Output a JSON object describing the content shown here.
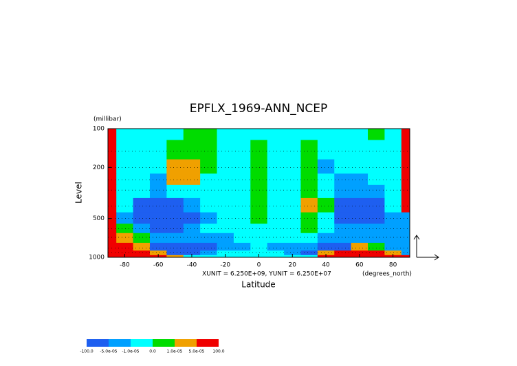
{
  "chart_data": {
    "type": "contour",
    "title": "EPFLX_1969-ANN_NCEP",
    "y_unit": "(millibar)",
    "y_label": "Level",
    "x_label": "Latitude",
    "x_unit": "(degrees_north)",
    "scale_note": "XUNIT = 6.250E+09, YUNIT = 6.250E+07",
    "x": [
      -90,
      -80,
      -70,
      -60,
      -50,
      -40,
      -30,
      -20,
      -10,
      0,
      10,
      20,
      30,
      40,
      50,
      60,
      70,
      80,
      90
    ],
    "y": [
      100,
      150,
      200,
      250,
      300,
      400,
      500,
      600,
      700,
      850,
      925,
      1000
    ],
    "xlim": [
      -90,
      90
    ],
    "xticks": [
      -80,
      -60,
      -40,
      -20,
      0,
      20,
      40,
      60,
      80
    ],
    "ylim": [
      1000,
      100
    ],
    "yticks": [
      100,
      200,
      500,
      1000
    ],
    "ylog": true,
    "levels": [
      {
        "value": -100,
        "label": "-100.0"
      },
      {
        "value": -5e-05,
        "label": "-5.0e-05"
      },
      {
        "value": -1e-05,
        "label": "-1.0e-05"
      },
      {
        "value": 0,
        "label": "0.0"
      },
      {
        "value": 1e-05,
        "label": "1.0e-05"
      },
      {
        "value": 5e-05,
        "label": "5.0e-05"
      },
      {
        "value": 100,
        "label": "100.0"
      }
    ],
    "colors": [
      "#1e5ff0",
      "#00a0ff",
      "#00ffff",
      "#00dc00",
      "#f0a000",
      "#f00000"
    ],
    "z": [
      [
        7e-05,
        -5e-06,
        -5e-06,
        -5e-06,
        -5e-06,
        5e-06,
        5e-06,
        -5e-06,
        -5e-06,
        -5e-06,
        -5e-06,
        -5e-06,
        -5e-06,
        -5e-06,
        -5e-06,
        -5e-06,
        5e-06,
        -5e-06,
        7e-05
      ],
      [
        7e-05,
        -5e-06,
        -5e-06,
        -5e-06,
        5e-06,
        5e-06,
        5e-06,
        -5e-06,
        -5e-06,
        5e-06,
        -5e-06,
        -5e-06,
        5e-06,
        -5e-06,
        -5e-06,
        -5e-06,
        -5e-06,
        -5e-06,
        7e-05
      ],
      [
        7e-05,
        -5e-06,
        -5e-06,
        -5e-06,
        3e-05,
        3e-05,
        5e-06,
        -5e-06,
        -5e-06,
        5e-06,
        -5e-06,
        -5e-06,
        5e-06,
        -3e-05,
        -5e-06,
        -5e-06,
        -5e-06,
        -5e-06,
        7e-05
      ],
      [
        7e-05,
        -5e-06,
        -5e-06,
        -3e-05,
        3e-05,
        3e-05,
        -5e-06,
        -5e-06,
        -5e-06,
        5e-06,
        -5e-06,
        -5e-06,
        5e-06,
        -5e-06,
        -3e-05,
        -3e-05,
        -5e-06,
        -5e-06,
        7e-05
      ],
      [
        7e-05,
        -5e-06,
        -5e-06,
        -3e-05,
        -5e-06,
        -5e-06,
        -5e-06,
        -5e-06,
        -5e-06,
        5e-06,
        -5e-06,
        -5e-06,
        5e-06,
        -5e-06,
        -3e-05,
        -3e-05,
        -3e-05,
        -5e-06,
        7e-05
      ],
      [
        7e-05,
        -5e-06,
        -7e-05,
        -7e-05,
        -7e-05,
        -3e-05,
        -5e-06,
        -5e-06,
        -5e-06,
        5e-06,
        -5e-06,
        -5e-06,
        3e-05,
        5e-06,
        -7e-05,
        -7e-05,
        -7e-05,
        -5e-06,
        7e-05
      ],
      [
        7e-05,
        -3e-05,
        -7e-05,
        -7e-05,
        -7e-05,
        -7e-05,
        -3e-05,
        -5e-06,
        -5e-06,
        5e-06,
        -5e-06,
        -5e-06,
        5e-06,
        -5e-06,
        -7e-05,
        -7e-05,
        -7e-05,
        -3e-05,
        -3e-05
      ],
      [
        7e-05,
        5e-06,
        -3e-05,
        -7e-05,
        -7e-05,
        -3e-05,
        -5e-06,
        -5e-06,
        -5e-06,
        -5e-06,
        -5e-06,
        -5e-06,
        5e-06,
        -5e-06,
        -3e-05,
        -3e-05,
        -3e-05,
        -3e-05,
        -3e-05
      ],
      [
        7e-05,
        3e-05,
        5e-06,
        -3e-05,
        -3e-05,
        -3e-05,
        -3e-05,
        -3e-05,
        -5e-06,
        -5e-06,
        -5e-06,
        -5e-06,
        -5e-06,
        -3e-05,
        -3e-05,
        -3e-05,
        -3e-05,
        -3e-05,
        -3e-05
      ],
      [
        7e-05,
        7e-05,
        3e-05,
        -7e-05,
        -7e-05,
        -7e-05,
        -7e-05,
        -3e-05,
        -3e-05,
        -5e-06,
        -3e-05,
        -3e-05,
        -3e-05,
        -7e-05,
        -7e-05,
        3e-05,
        5e-06,
        -3e-05,
        -3e-05
      ],
      [
        7e-05,
        7e-05,
        7e-05,
        3e-05,
        -7e-05,
        -7e-05,
        -3e-05,
        -5e-06,
        -5e-06,
        -5e-06,
        -5e-06,
        -3e-05,
        -7e-05,
        3e-05,
        7e-05,
        7e-05,
        7e-05,
        3e-05,
        -3e-05
      ],
      [
        7e-05,
        7e-05,
        7e-05,
        7e-05,
        3e-05,
        -5e-06,
        -5e-06,
        -5e-06,
        -5e-06,
        -5e-06,
        -5e-06,
        -5e-06,
        -5e-06,
        7e-05,
        7e-05,
        7e-05,
        7e-05,
        7e-05,
        7e-05
      ]
    ]
  }
}
